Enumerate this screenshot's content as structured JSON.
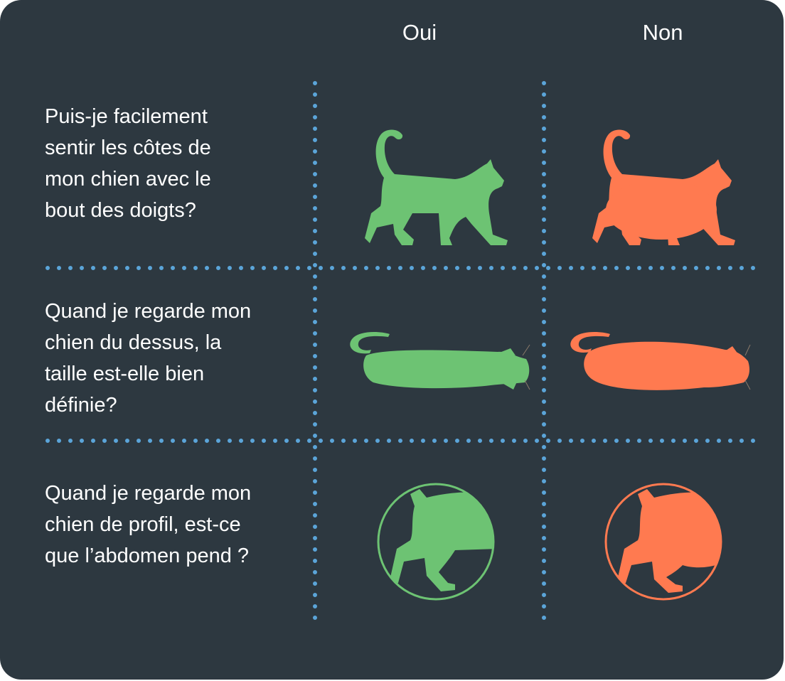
{
  "columns": {
    "yes": "Oui",
    "no": "Non"
  },
  "questions": [
    {
      "line1": "Puis-je facilement",
      "line2": "sentir les côtes de",
      "line3": "mon chien avec le",
      "line4": "bout des doigts?"
    },
    {
      "line1": "Quand je regarde mon",
      "line2": "chien du dessus, la",
      "line3": "taille est-elle bien",
      "line4": "définie?"
    },
    {
      "line1": "Quand je regarde mon",
      "line2": "chien de profil, est-ce",
      "line3": "que l’abdomen pend ?"
    }
  ],
  "icons": {
    "yes_color": "#6dc373",
    "no_color": "#ff7a50",
    "grid_dot_color": "#5ba5d9",
    "background": "#2d3840"
  }
}
